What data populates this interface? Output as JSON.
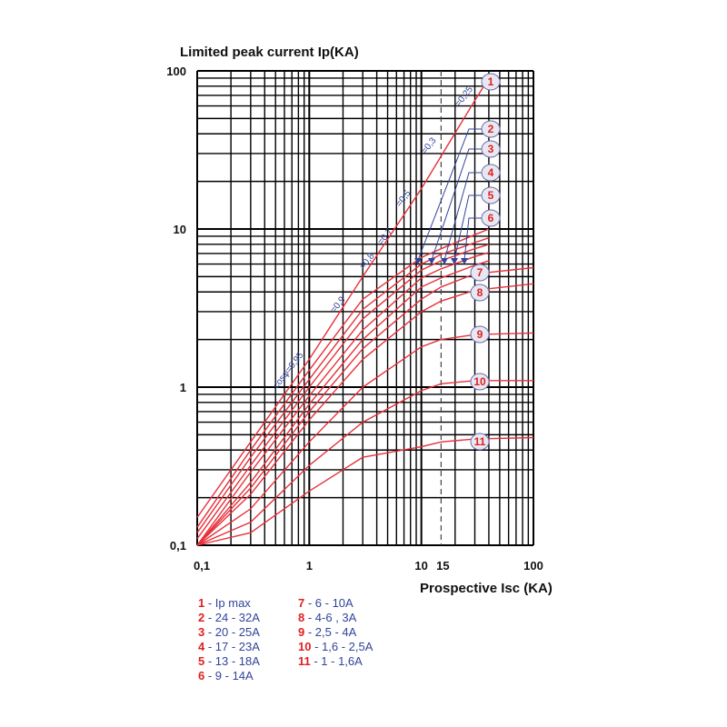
{
  "chart_data": {
    "type": "line",
    "title": "Limited peak current Ip(KA)",
    "xlabel": "Prospective Isc (KA)",
    "ylabel": "Limited peak current Ip(KA)",
    "x_scale": "log",
    "y_scale": "log",
    "xlim": [
      0.1,
      100
    ],
    "ylim": [
      0.1,
      100
    ],
    "x_tick_labels": [
      "0,1",
      "1",
      "10",
      "15",
      "100"
    ],
    "y_tick_labels": [
      "0,1",
      "1",
      "10",
      "100"
    ],
    "grid": true,
    "reference_line": {
      "x": 15,
      "style": "dashed"
    },
    "power_factor_labels": [
      "cosφ=0,95",
      "=0,9",
      "=0,8",
      "=0,7",
      "=0,5",
      "=0,3",
      "=0,25"
    ],
    "series": [
      {
        "name": "1",
        "x": [
          0.1,
          0.3,
          1,
          3,
          10,
          30,
          40
        ],
        "y": [
          0.15,
          0.45,
          1.5,
          5.0,
          18,
          65,
          90
        ]
      },
      {
        "name": "2",
        "x": [
          0.1,
          0.3,
          1,
          3,
          10,
          15,
          30,
          40
        ],
        "y": [
          0.13,
          0.4,
          1.28,
          3.6,
          6.6,
          7.5,
          9.2,
          10
        ]
      },
      {
        "name": "3",
        "x": [
          0.1,
          0.3,
          1,
          3,
          10,
          15,
          30,
          40
        ],
        "y": [
          0.12,
          0.36,
          1.12,
          3.1,
          6.0,
          6.9,
          8.2,
          8.8
        ]
      },
      {
        "name": "4",
        "x": [
          0.1,
          0.3,
          1,
          3,
          10,
          15,
          30,
          40
        ],
        "y": [
          0.11,
          0.32,
          1.0,
          2.7,
          5.5,
          6.3,
          7.5,
          8.0
        ]
      },
      {
        "name": "5",
        "x": [
          0.1,
          0.3,
          1,
          3,
          10,
          15,
          30,
          40
        ],
        "y": [
          0.1,
          0.29,
          0.88,
          2.3,
          4.9,
          5.6,
          6.7,
          7.1
        ]
      },
      {
        "name": "6",
        "x": [
          0.1,
          0.3,
          1,
          3,
          10,
          15,
          30,
          40
        ],
        "y": [
          0.1,
          0.25,
          0.78,
          2.0,
          4.3,
          4.9,
          5.9,
          6.3
        ]
      },
      {
        "name": "7",
        "x": [
          0.1,
          0.3,
          1,
          3,
          10,
          15,
          30,
          100
        ],
        "y": [
          0.1,
          0.23,
          0.7,
          1.75,
          3.6,
          4.3,
          5.2,
          5.7
        ]
      },
      {
        "name": "8",
        "x": [
          0.1,
          0.3,
          1,
          3,
          10,
          15,
          30,
          100
        ],
        "y": [
          0.1,
          0.21,
          0.62,
          1.5,
          3.0,
          3.5,
          4.1,
          4.5
        ]
      },
      {
        "name": "9",
        "x": [
          0.1,
          0.3,
          1,
          3,
          10,
          15,
          30,
          100
        ],
        "y": [
          0.1,
          0.17,
          0.45,
          1.0,
          1.8,
          2.0,
          2.15,
          2.2
        ]
      },
      {
        "name": "10",
        "x": [
          0.1,
          0.3,
          1,
          3,
          10,
          15,
          30,
          100
        ],
        "y": [
          0.1,
          0.14,
          0.32,
          0.6,
          0.95,
          1.05,
          1.1,
          1.1
        ]
      },
      {
        "name": "11",
        "x": [
          0.1,
          0.3,
          1,
          3,
          10,
          15,
          30,
          100
        ],
        "y": [
          0.1,
          0.12,
          0.22,
          0.36,
          0.42,
          0.45,
          0.47,
          0.48
        ]
      }
    ]
  },
  "legend": {
    "left": [
      {
        "num": "1",
        "text": " - Ip max"
      },
      {
        "num": "2",
        "text": " - 24 - 32A"
      },
      {
        "num": "3",
        "text": " - 20 - 25A"
      },
      {
        "num": "4",
        "text": " - 17 - 23A"
      },
      {
        "num": "5",
        "text": " - 13 - 18A"
      },
      {
        "num": "6",
        "text": " - 9 - 14A"
      }
    ],
    "right": [
      {
        "num": "7",
        "text": " - 6 - 10A"
      },
      {
        "num": "8",
        "text": " - 4-6 , 3A"
      },
      {
        "num": "9",
        "text": " - 2,5 - 4A"
      },
      {
        "num": "10",
        "text": " - 1,6 - 2,5A"
      },
      {
        "num": "11",
        "text": " - 1 - 1,6A"
      }
    ]
  },
  "colors": {
    "curve": "#e8303a",
    "tag": "#e02020",
    "annotation": "#33449a",
    "grid": "#000000"
  }
}
